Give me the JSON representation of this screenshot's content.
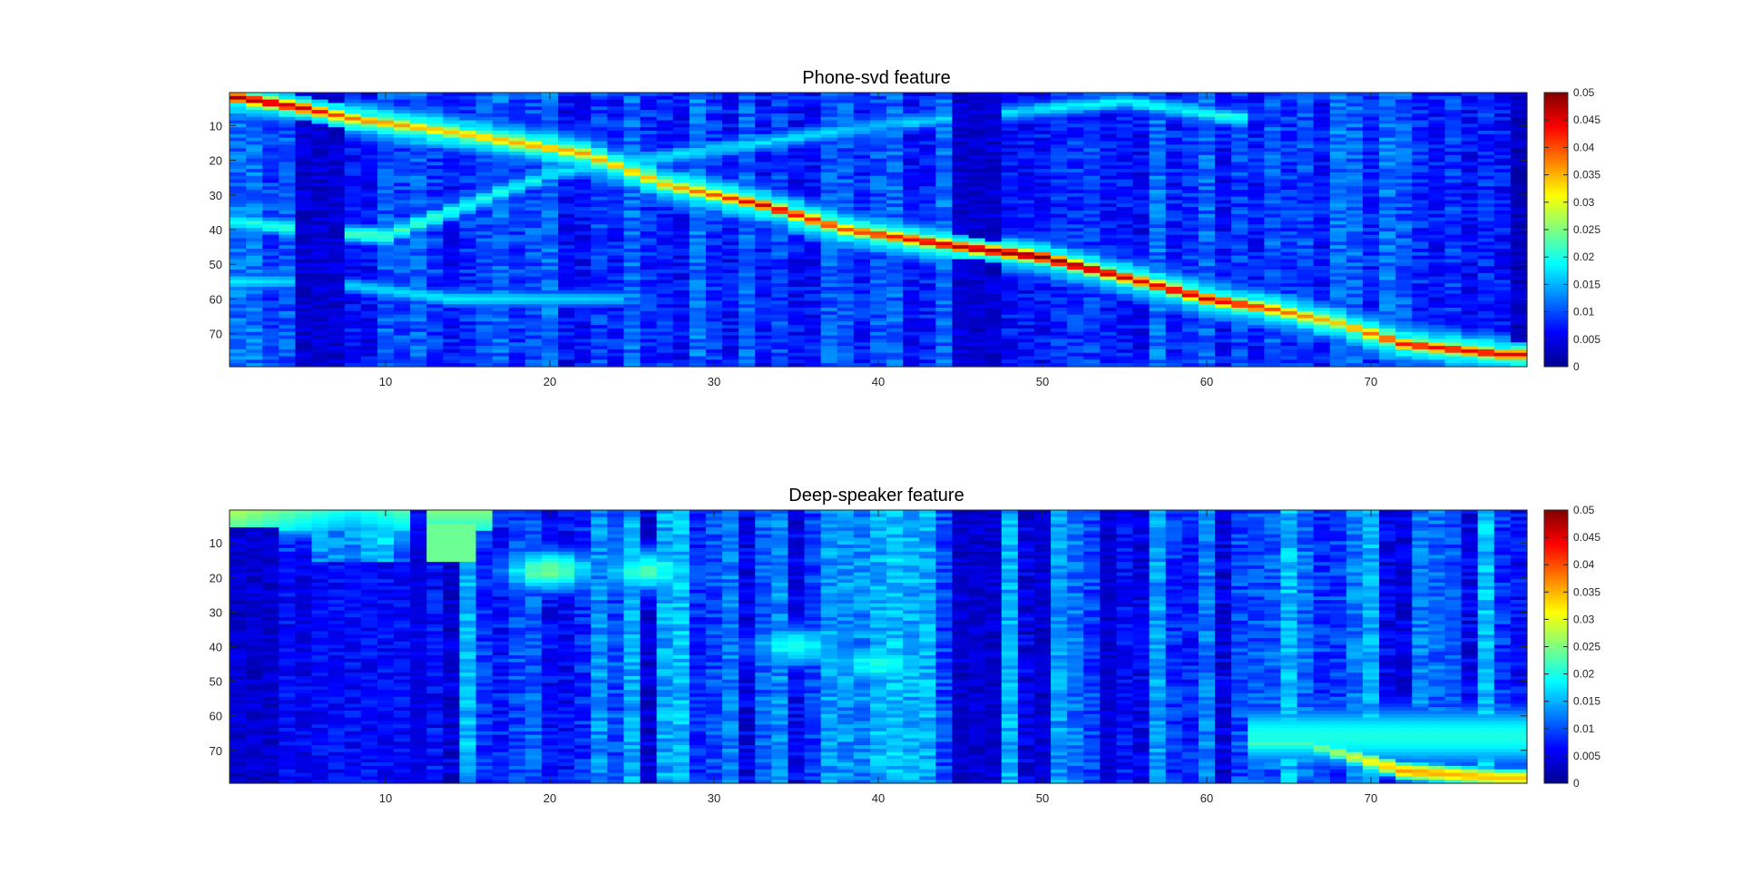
{
  "chart_data": [
    {
      "type": "heatmap",
      "title": "Phone-svd feature",
      "xlabel": "",
      "ylabel": "",
      "colormap": "jet",
      "grid": false,
      "rows": 79,
      "cols": 79,
      "xlim": [
        0.5,
        79.5
      ],
      "ylim": [
        0.5,
        79.5
      ],
      "y_direction": "reverse",
      "x_ticks": [
        "10",
        "20",
        "30",
        "40",
        "50",
        "60",
        "70"
      ],
      "y_ticks": [
        "10",
        "20",
        "30",
        "40",
        "50",
        "60",
        "70"
      ],
      "color_range": [
        0,
        0.05
      ],
      "colorbar_ticks": [
        "0",
        "0.005",
        "0.01",
        "0.015",
        "0.02",
        "0.025",
        "0.03",
        "0.035",
        "0.04",
        "0.045",
        "0.05"
      ],
      "features": {
        "background": 0.009,
        "diagonal": [
          [
            1,
            2,
            0.048
          ],
          [
            5,
            5,
            0.046
          ],
          [
            8,
            8,
            0.038
          ],
          [
            14,
            12,
            0.034
          ],
          [
            22,
            18,
            0.036
          ],
          [
            27,
            27,
            0.034
          ],
          [
            33,
            33,
            0.046
          ],
          [
            38,
            40,
            0.04
          ],
          [
            45,
            45,
            0.047
          ],
          [
            50,
            48,
            0.05
          ],
          [
            56,
            55,
            0.045
          ],
          [
            60,
            60,
            0.046
          ],
          [
            64,
            63,
            0.04
          ],
          [
            68,
            67,
            0.034
          ],
          [
            72,
            73,
            0.043
          ],
          [
            78,
            76,
            0.045
          ]
        ],
        "side_band": [
          [
            1,
            55,
            0.018
          ],
          [
            6,
            55,
            0.016
          ],
          [
            14,
            60,
            0.018
          ],
          [
            24,
            60,
            0.016
          ]
        ],
        "upper_band": [
          [
            1,
            38,
            0.02
          ],
          [
            10,
            42,
            0.022
          ],
          [
            20,
            24,
            0.018
          ],
          [
            40,
            10,
            0.016
          ],
          [
            55,
            3,
            0.018
          ],
          [
            62,
            8,
            0.02
          ]
        ],
        "dark_columns": [
          [
            5,
            7,
            0.002
          ],
          [
            45,
            47,
            0.002
          ],
          [
            79,
            79,
            0.001
          ]
        ]
      }
    },
    {
      "type": "heatmap",
      "title": "Deep-speaker feature",
      "xlabel": "",
      "ylabel": "",
      "colormap": "jet",
      "grid": false,
      "rows": 79,
      "cols": 79,
      "xlim": [
        0.5,
        79.5
      ],
      "ylim": [
        0.5,
        79.5
      ],
      "y_direction": "reverse",
      "x_ticks": [
        "10",
        "20",
        "30",
        "40",
        "50",
        "60",
        "70"
      ],
      "y_ticks": [
        "10",
        "20",
        "30",
        "40",
        "50",
        "60",
        "70"
      ],
      "color_range": [
        0,
        0.05
      ],
      "colorbar_ticks": [
        "0",
        "0.005",
        "0.01",
        "0.015",
        "0.02",
        "0.025",
        "0.03",
        "0.035",
        "0.04",
        "0.045",
        "0.05"
      ],
      "features": {
        "background": 0.01,
        "top_rows": [
          [
            1,
            6,
            0.028
          ],
          [
            8,
            12,
            0.02
          ],
          [
            13,
            15,
            0.026
          ]
        ],
        "mid_bright": [
          [
            20,
            18,
            0.024
          ],
          [
            26,
            18,
            0.022
          ],
          [
            35,
            40,
            0.02
          ],
          [
            40,
            45,
            0.02
          ]
        ],
        "bottom_right": [
          [
            66,
            68,
            0.022
          ],
          [
            72,
            76,
            0.036
          ],
          [
            78,
            78,
            0.034
          ]
        ],
        "dark_columns": [
          [
            1,
            3,
            0.002
          ],
          [
            12,
            12,
            0.004
          ],
          [
            45,
            47,
            0.002
          ],
          [
            50,
            50,
            0.002
          ],
          [
            54,
            54,
            0.002
          ]
        ]
      }
    }
  ]
}
